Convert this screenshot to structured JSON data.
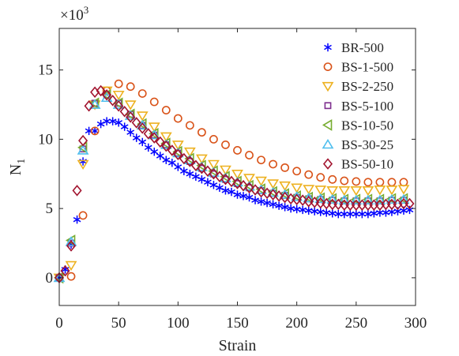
{
  "chart_data": {
    "type": "scatter",
    "title": "",
    "xlabel": "Strain",
    "ylabel": "N",
    "ylabel_subscript": "1",
    "y_multiplier": "×10",
    "y_multiplier_exponent": "3",
    "xlim": [
      0,
      300
    ],
    "ylim": [
      -2,
      18
    ],
    "xticks": [
      0,
      50,
      100,
      150,
      200,
      250,
      300
    ],
    "yticks": [
      0,
      5,
      10,
      15
    ],
    "yticklabels": [
      "0",
      "5",
      "10",
      "15"
    ],
    "grid": false,
    "legend_position": "top-right",
    "series": [
      {
        "name": "BR-500",
        "marker": "asterisk",
        "color": "#0000ff",
        "points": [
          [
            0,
            0
          ],
          [
            5,
            0.6
          ],
          [
            10,
            2.4
          ],
          [
            15,
            4.2
          ],
          [
            20,
            8.4
          ],
          [
            25,
            10.6
          ],
          [
            30,
            10.6
          ],
          [
            35,
            11.1
          ],
          [
            40,
            11.3
          ],
          [
            45,
            11.3
          ],
          [
            50,
            11.2
          ],
          [
            55,
            10.9
          ],
          [
            60,
            10.5
          ],
          [
            65,
            10.1
          ],
          [
            70,
            9.8
          ],
          [
            75,
            9.4
          ],
          [
            80,
            9.1
          ],
          [
            85,
            8.8
          ],
          [
            90,
            8.5
          ],
          [
            95,
            8.3
          ],
          [
            100,
            8.0
          ],
          [
            105,
            7.7
          ],
          [
            110,
            7.5
          ],
          [
            115,
            7.3
          ],
          [
            120,
            7.1
          ],
          [
            125,
            6.9
          ],
          [
            130,
            6.7
          ],
          [
            135,
            6.5
          ],
          [
            140,
            6.3
          ],
          [
            145,
            6.2
          ],
          [
            150,
            6.0
          ],
          [
            155,
            5.9
          ],
          [
            160,
            5.8
          ],
          [
            165,
            5.6
          ],
          [
            170,
            5.5
          ],
          [
            175,
            5.4
          ],
          [
            180,
            5.3
          ],
          [
            185,
            5.2
          ],
          [
            190,
            5.1
          ],
          [
            195,
            5.0
          ],
          [
            200,
            4.95
          ],
          [
            205,
            4.9
          ],
          [
            210,
            4.85
          ],
          [
            215,
            4.8
          ],
          [
            220,
            4.75
          ],
          [
            225,
            4.7
          ],
          [
            230,
            4.65
          ],
          [
            235,
            4.6
          ],
          [
            240,
            4.6
          ],
          [
            245,
            4.6
          ],
          [
            250,
            4.6
          ],
          [
            255,
            4.6
          ],
          [
            260,
            4.6
          ],
          [
            265,
            4.65
          ],
          [
            270,
            4.7
          ],
          [
            275,
            4.7
          ],
          [
            280,
            4.75
          ],
          [
            285,
            4.8
          ],
          [
            290,
            4.85
          ],
          [
            295,
            4.9
          ]
        ]
      },
      {
        "name": "BS-1-500",
        "marker": "circle",
        "color": "#d95319",
        "points": [
          [
            0,
            0
          ],
          [
            10,
            0.1
          ],
          [
            20,
            4.5
          ],
          [
            30,
            10.6
          ],
          [
            40,
            13.5
          ],
          [
            50,
            14.0
          ],
          [
            60,
            13.8
          ],
          [
            70,
            13.3
          ],
          [
            80,
            12.7
          ],
          [
            90,
            12.1
          ],
          [
            100,
            11.5
          ],
          [
            110,
            11.0
          ],
          [
            120,
            10.5
          ],
          [
            130,
            10.0
          ],
          [
            140,
            9.6
          ],
          [
            150,
            9.2
          ],
          [
            160,
            8.85
          ],
          [
            170,
            8.5
          ],
          [
            180,
            8.2
          ],
          [
            190,
            7.95
          ],
          [
            200,
            7.7
          ],
          [
            210,
            7.45
          ],
          [
            220,
            7.25
          ],
          [
            230,
            7.1
          ],
          [
            240,
            7.0
          ],
          [
            250,
            6.95
          ],
          [
            260,
            6.9
          ],
          [
            270,
            6.9
          ],
          [
            280,
            6.9
          ],
          [
            290,
            6.9
          ]
        ]
      },
      {
        "name": "BS-2-250",
        "marker": "triangle-down",
        "color": "#edb120",
        "points": [
          [
            0,
            0
          ],
          [
            10,
            0.9
          ],
          [
            20,
            8.2
          ],
          [
            30,
            12.5
          ],
          [
            40,
            13.5
          ],
          [
            50,
            13.2
          ],
          [
            60,
            12.5
          ],
          [
            70,
            11.7
          ],
          [
            80,
            10.9
          ],
          [
            90,
            10.2
          ],
          [
            100,
            9.6
          ],
          [
            110,
            9.1
          ],
          [
            120,
            8.6
          ],
          [
            130,
            8.2
          ],
          [
            140,
            7.8
          ],
          [
            150,
            7.5
          ],
          [
            160,
            7.2
          ],
          [
            170,
            7.0
          ],
          [
            180,
            6.8
          ],
          [
            190,
            6.65
          ],
          [
            200,
            6.5
          ],
          [
            210,
            6.4
          ],
          [
            220,
            6.35
          ],
          [
            230,
            6.3
          ],
          [
            240,
            6.3
          ],
          [
            250,
            6.3
          ],
          [
            260,
            6.3
          ],
          [
            270,
            6.35
          ],
          [
            280,
            6.35
          ],
          [
            290,
            6.4
          ]
        ]
      },
      {
        "name": "BS-5-100",
        "marker": "square",
        "color": "#7e2f8e",
        "points": [
          [
            0,
            0
          ],
          [
            10,
            2.5
          ],
          [
            20,
            9.3
          ],
          [
            30,
            12.6
          ],
          [
            40,
            13.2
          ],
          [
            50,
            12.6
          ],
          [
            60,
            11.8
          ],
          [
            70,
            11.0
          ],
          [
            80,
            10.3
          ],
          [
            90,
            9.6
          ],
          [
            100,
            9.0
          ],
          [
            110,
            8.4
          ],
          [
            120,
            7.9
          ],
          [
            130,
            7.5
          ],
          [
            140,
            7.1
          ],
          [
            150,
            6.8
          ],
          [
            160,
            6.5
          ],
          [
            170,
            6.3
          ],
          [
            180,
            6.1
          ],
          [
            190,
            5.95
          ],
          [
            200,
            5.8
          ],
          [
            210,
            5.7
          ],
          [
            220,
            5.65
          ],
          [
            230,
            5.6
          ],
          [
            240,
            5.55
          ],
          [
            250,
            5.55
          ],
          [
            260,
            5.55
          ],
          [
            270,
            5.55
          ],
          [
            280,
            5.6
          ],
          [
            290,
            5.6
          ]
        ]
      },
      {
        "name": "BS-10-50",
        "marker": "triangle-left",
        "color": "#77ac30",
        "points": [
          [
            0,
            0
          ],
          [
            10,
            2.7
          ],
          [
            20,
            9.4
          ],
          [
            30,
            12.6
          ],
          [
            40,
            13.2
          ],
          [
            50,
            12.6
          ],
          [
            60,
            11.8
          ],
          [
            70,
            11.1
          ],
          [
            80,
            10.4
          ],
          [
            90,
            9.7
          ],
          [
            100,
            9.1
          ],
          [
            110,
            8.6
          ],
          [
            120,
            8.1
          ],
          [
            130,
            7.7
          ],
          [
            140,
            7.3
          ],
          [
            150,
            6.95
          ],
          [
            160,
            6.65
          ],
          [
            170,
            6.4
          ],
          [
            180,
            6.2
          ],
          [
            190,
            6.05
          ],
          [
            200,
            5.9
          ],
          [
            210,
            5.8
          ],
          [
            220,
            5.75
          ],
          [
            230,
            5.7
          ],
          [
            240,
            5.65
          ],
          [
            250,
            5.65
          ],
          [
            260,
            5.65
          ],
          [
            270,
            5.65
          ],
          [
            280,
            5.7
          ],
          [
            290,
            5.7
          ]
        ]
      },
      {
        "name": "BS-30-25",
        "marker": "triangle-up",
        "color": "#4dbeee",
        "points": [
          [
            0,
            0
          ],
          [
            10,
            2.6
          ],
          [
            20,
            9.2
          ],
          [
            30,
            12.5
          ],
          [
            40,
            13.0
          ],
          [
            50,
            12.5
          ],
          [
            60,
            11.7
          ],
          [
            70,
            11.0
          ],
          [
            80,
            10.3
          ],
          [
            90,
            9.6
          ],
          [
            100,
            9.0
          ],
          [
            110,
            8.5
          ],
          [
            120,
            8.0
          ],
          [
            130,
            7.6
          ],
          [
            140,
            7.2
          ],
          [
            150,
            6.9
          ],
          [
            160,
            6.6
          ],
          [
            170,
            6.35
          ],
          [
            180,
            6.15
          ],
          [
            190,
            6.0
          ],
          [
            200,
            5.85
          ],
          [
            210,
            5.75
          ],
          [
            220,
            5.7
          ],
          [
            230,
            5.65
          ],
          [
            240,
            5.6
          ],
          [
            250,
            5.6
          ],
          [
            260,
            5.6
          ],
          [
            270,
            5.6
          ],
          [
            280,
            5.65
          ],
          [
            290,
            5.65
          ]
        ]
      },
      {
        "name": "BS-50-10",
        "marker": "diamond",
        "color": "#a2142f",
        "points": [
          [
            0,
            0
          ],
          [
            5,
            0.5
          ],
          [
            10,
            2.3
          ],
          [
            15,
            6.3
          ],
          [
            20,
            9.9
          ],
          [
            25,
            12.4
          ],
          [
            30,
            13.4
          ],
          [
            35,
            13.5
          ],
          [
            40,
            13.2
          ],
          [
            45,
            12.8
          ],
          [
            50,
            12.4
          ],
          [
            55,
            12.0
          ],
          [
            60,
            11.6
          ],
          [
            65,
            11.2
          ],
          [
            70,
            10.8
          ],
          [
            75,
            10.4
          ],
          [
            80,
            10.1
          ],
          [
            85,
            9.8
          ],
          [
            90,
            9.5
          ],
          [
            95,
            9.2
          ],
          [
            100,
            8.9
          ],
          [
            105,
            8.6
          ],
          [
            110,
            8.4
          ],
          [
            115,
            8.1
          ],
          [
            120,
            7.9
          ],
          [
            125,
            7.7
          ],
          [
            130,
            7.5
          ],
          [
            135,
            7.3
          ],
          [
            140,
            7.1
          ],
          [
            145,
            6.95
          ],
          [
            150,
            6.8
          ],
          [
            155,
            6.65
          ],
          [
            160,
            6.5
          ],
          [
            165,
            6.35
          ],
          [
            170,
            6.2
          ],
          [
            175,
            6.1
          ],
          [
            180,
            6.0
          ],
          [
            185,
            5.9
          ],
          [
            190,
            5.8
          ],
          [
            195,
            5.7
          ],
          [
            200,
            5.65
          ],
          [
            205,
            5.6
          ],
          [
            210,
            5.5
          ],
          [
            215,
            5.45
          ],
          [
            220,
            5.4
          ],
          [
            225,
            5.35
          ],
          [
            230,
            5.3
          ],
          [
            235,
            5.3
          ],
          [
            240,
            5.25
          ],
          [
            245,
            5.25
          ],
          [
            250,
            5.25
          ],
          [
            255,
            5.25
          ],
          [
            260,
            5.25
          ],
          [
            265,
            5.25
          ],
          [
            270,
            5.25
          ],
          [
            275,
            5.3
          ],
          [
            280,
            5.3
          ],
          [
            285,
            5.3
          ],
          [
            290,
            5.35
          ],
          [
            295,
            5.35
          ]
        ]
      }
    ]
  }
}
